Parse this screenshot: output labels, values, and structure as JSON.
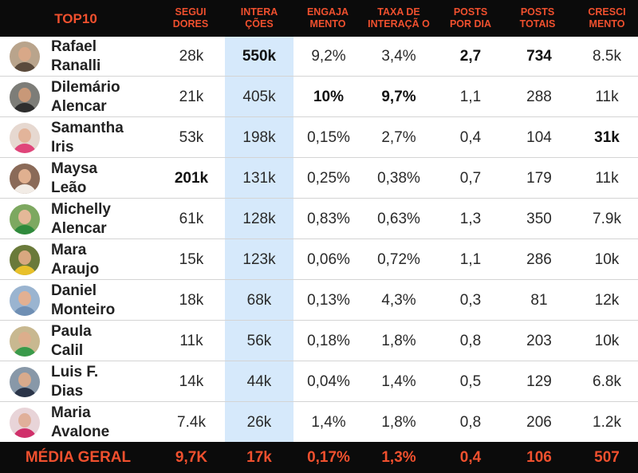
{
  "header": {
    "rank_title": "TOP10",
    "seguidores": "SEGUI\nDORES",
    "interacoes": "INTERA\nÇÕES",
    "engajamento": "ENGAJA\nMENTO",
    "taxa_interacao": "TAXA DE\nINTERAÇÃ O",
    "posts_dia": "POSTS\nPOR DIA",
    "posts_totais": "POSTS\nTOTAIS",
    "crescimento": "CRESCI\nMENTO"
  },
  "highlight_color": "#d6e9fb",
  "accent_color": "#f0502e",
  "rows": [
    {
      "name": "Rafael\nRanalli",
      "seguidores": "28k",
      "interacoes": "550k",
      "engajamento": "9,2%",
      "taxa": "3,4%",
      "posts_dia": "2,7",
      "posts_totais": "734",
      "crescimento": "8.5k"
    },
    {
      "name": "Dilemário\nAlencar",
      "seguidores": "21k",
      "interacoes": "405k",
      "engajamento": "10%",
      "taxa": "9,7%",
      "posts_dia": "1,1",
      "posts_totais": "288",
      "crescimento": "11k"
    },
    {
      "name": "Samantha\nIris",
      "seguidores": "53k",
      "interacoes": "198k",
      "engajamento": "0,15%",
      "taxa": "2,7%",
      "posts_dia": "0,4",
      "posts_totais": "104",
      "crescimento": "31k"
    },
    {
      "name": "Maysa\nLeão",
      "seguidores": "201k",
      "interacoes": "131k",
      "engajamento": "0,25%",
      "taxa": "0,38%",
      "posts_dia": "0,7",
      "posts_totais": "179",
      "crescimento": "11k"
    },
    {
      "name": "Michelly\nAlencar",
      "seguidores": "61k",
      "interacoes": "128k",
      "engajamento": "0,83%",
      "taxa": "0,63%",
      "posts_dia": "1,3",
      "posts_totais": "350",
      "crescimento": "7.9k"
    },
    {
      "name": "Mara\nAraujo",
      "seguidores": "15k",
      "interacoes": "123k",
      "engajamento": "0,06%",
      "taxa": "0,72%",
      "posts_dia": "1,1",
      "posts_totais": "286",
      "crescimento": "10k"
    },
    {
      "name": "Daniel\nMonteiro",
      "seguidores": "18k",
      "interacoes": "68k",
      "engajamento": "0,13%",
      "taxa": "4,3%",
      "posts_dia": "0,3",
      "posts_totais": "81",
      "crescimento": "12k"
    },
    {
      "name": "Paula\nCalil",
      "seguidores": "11k",
      "interacoes": "56k",
      "engajamento": "0,18%",
      "taxa": "1,8%",
      "posts_dia": "0,8",
      "posts_totais": "203",
      "crescimento": "10k"
    },
    {
      "name": "Luis F.\nDias",
      "seguidores": "14k",
      "interacoes": "44k",
      "engajamento": "0,04%",
      "taxa": "1,4%",
      "posts_dia": "0,5",
      "posts_totais": "129",
      "crescimento": "6.8k"
    },
    {
      "name": "Maria\nAvalone",
      "seguidores": "7.4k",
      "interacoes": "26k",
      "engajamento": "1,4%",
      "taxa": "1,8%",
      "posts_dia": "0,8",
      "posts_totais": "206",
      "crescimento": "1.2k"
    }
  ],
  "footer": {
    "label": "MÉDIA GERAL",
    "seguidores": "9,7K",
    "interacoes": "17k",
    "engajamento": "0,17%",
    "taxa": "1,3%",
    "posts_dia": "0,4",
    "posts_totais": "106",
    "crescimento": "507"
  }
}
